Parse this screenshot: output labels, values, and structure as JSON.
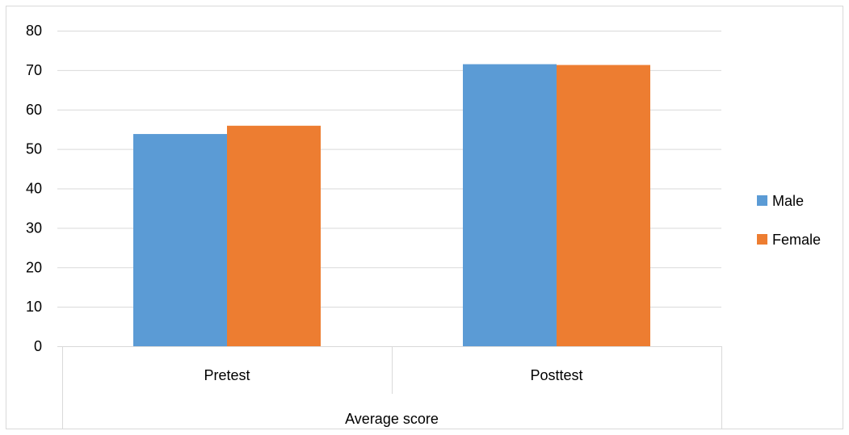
{
  "chart_data": {
    "type": "bar",
    "title": "",
    "xlabel": "Average score",
    "ylabel": "",
    "ylim": [
      0,
      80
    ],
    "y_ticks": [
      0,
      10,
      20,
      30,
      40,
      50,
      60,
      70,
      80
    ],
    "categories": [
      "Pretest",
      "Posttest"
    ],
    "group_label": "Average score",
    "grid": true,
    "legend_position": "right",
    "series": [
      {
        "name": "Male",
        "color": "#5b9bd5",
        "values": [
          53.8,
          71.5
        ]
      },
      {
        "name": "Female",
        "color": "#ed7d31",
        "values": [
          55.9,
          71.3
        ]
      }
    ]
  }
}
